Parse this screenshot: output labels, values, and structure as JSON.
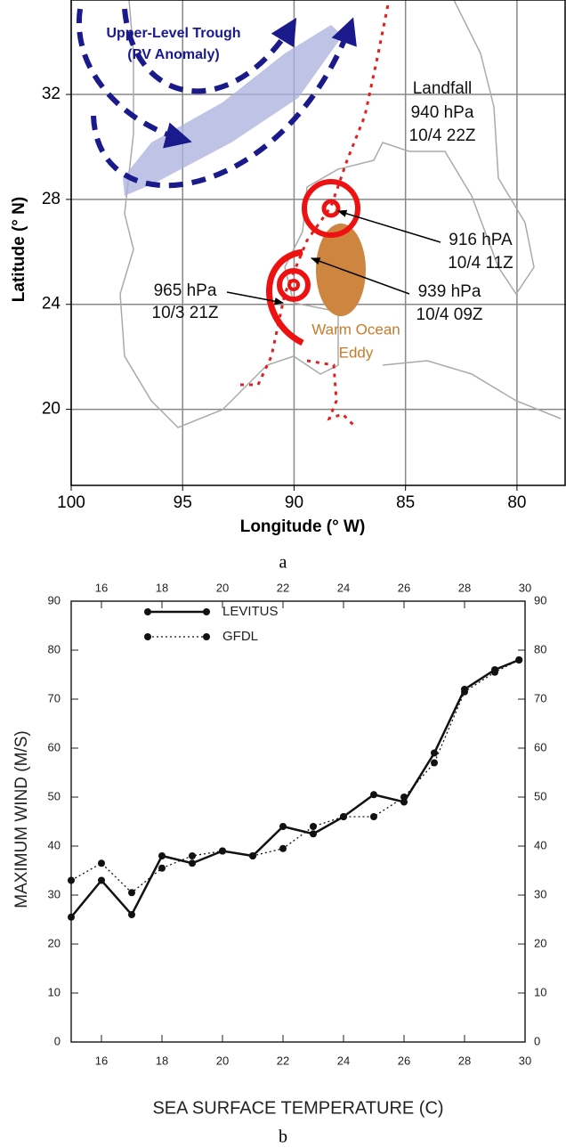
{
  "chart_data": [
    {
      "type": "map",
      "xlabel": "Longitude (° W)",
      "ylabel": "Latitude (° N)",
      "caption": "a",
      "xlim": [
        100,
        77.8
      ],
      "ylim": [
        17.1,
        35.6
      ],
      "xticks": [
        100,
        95,
        90,
        85,
        80
      ],
      "yticks": [
        20,
        24,
        28,
        32
      ],
      "grid": true,
      "annotations": [
        "Upper-Level Trough",
        "(PV Anomaly)",
        "Landfall",
        "940 hPa",
        "10/4 22Z",
        "916 hPA",
        "10/4 11Z",
        "939 hPa",
        "10/4 09Z",
        "965 hPa",
        "10/3 21Z",
        "Warm Ocean",
        "Eddy"
      ]
    },
    {
      "type": "line",
      "xlabel": "SEA SURFACE TEMPERATURE (C)",
      "ylabel": "MAXIMUM WIND (M/S)",
      "caption": "b",
      "x": [
        15,
        16,
        17,
        18,
        19,
        20,
        21,
        22,
        23,
        24,
        25,
        26,
        27,
        28,
        29,
        29.8
      ],
      "series": [
        {
          "name": "LEVITUS",
          "color": "#111111",
          "dashed": false,
          "values": [
            25.5,
            33,
            26,
            38,
            36.5,
            39,
            38,
            44,
            42.5,
            46,
            50.5,
            49,
            59,
            72,
            76,
            78
          ]
        },
        {
          "name": "GFDL",
          "color": "#111111",
          "dashed": true,
          "values": [
            33,
            36.5,
            30.5,
            35.5,
            38,
            39,
            38,
            39.5,
            44,
            46,
            46,
            50,
            57,
            71.5,
            75.5,
            78
          ]
        }
      ],
      "xlim": [
        15,
        30
      ],
      "ylim": [
        0,
        90
      ],
      "xticks": [
        16,
        18,
        20,
        22,
        24,
        26,
        28,
        30
      ],
      "yticks": [
        0,
        10,
        20,
        30,
        40,
        50,
        60,
        70,
        80,
        90
      ]
    }
  ]
}
